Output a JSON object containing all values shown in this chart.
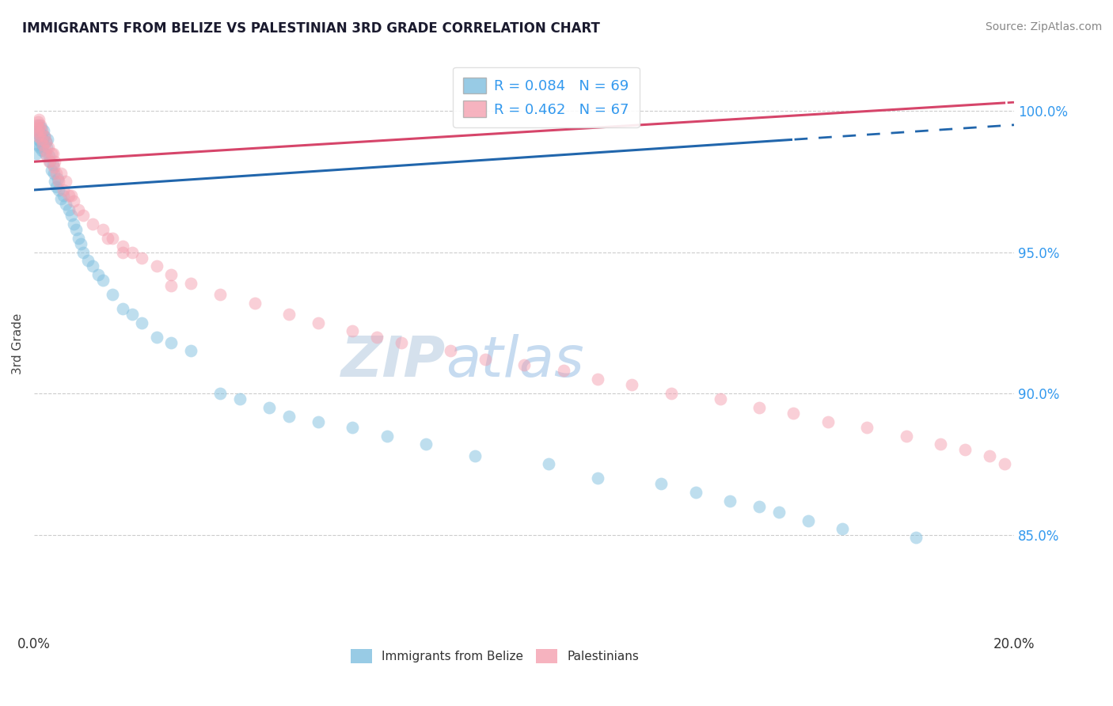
{
  "title": "IMMIGRANTS FROM BELIZE VS PALESTINIAN 3RD GRADE CORRELATION CHART",
  "source": "Source: ZipAtlas.com",
  "ylabel": "3rd Grade",
  "yticks": [
    85.0,
    90.0,
    95.0,
    100.0
  ],
  "ytick_labels": [
    "85.0%",
    "90.0%",
    "95.0%",
    "100.0%"
  ],
  "xlim": [
    0.0,
    20.0
  ],
  "ylim": [
    81.5,
    102.0
  ],
  "legend_r_belize": "R = 0.084",
  "legend_n_belize": "N = 69",
  "legend_r_palest": "R = 0.462",
  "legend_n_palest": "N = 67",
  "color_belize": "#7fbfdf",
  "color_palest": "#f4a0b0",
  "color_belize_line": "#2166ac",
  "color_palest_line": "#d6456a",
  "watermark_zip": "ZIP",
  "watermark_atlas": "atlas",
  "belize_x": [
    0.05,
    0.06,
    0.07,
    0.08,
    0.09,
    0.1,
    0.11,
    0.12,
    0.13,
    0.14,
    0.15,
    0.16,
    0.17,
    0.18,
    0.19,
    0.2,
    0.22,
    0.24,
    0.25,
    0.27,
    0.3,
    0.32,
    0.35,
    0.38,
    0.4,
    0.42,
    0.45,
    0.48,
    0.5,
    0.55,
    0.6,
    0.65,
    0.7,
    0.75,
    0.8,
    0.85,
    0.9,
    0.95,
    1.0,
    1.1,
    1.2,
    1.3,
    1.4,
    1.6,
    1.8,
    2.0,
    2.2,
    2.5,
    2.8,
    3.2,
    3.8,
    4.2,
    4.8,
    5.2,
    5.8,
    6.5,
    7.2,
    8.0,
    9.0,
    10.5,
    11.5,
    12.8,
    13.5,
    14.2,
    14.8,
    15.2,
    15.8,
    16.5,
    18.0
  ],
  "belize_y": [
    98.5,
    99.2,
    99.0,
    98.8,
    99.5,
    99.3,
    98.7,
    99.1,
    98.9,
    99.4,
    99.2,
    98.6,
    99.0,
    98.8,
    99.3,
    99.1,
    98.5,
    98.9,
    98.7,
    99.0,
    98.4,
    98.2,
    97.9,
    98.1,
    97.8,
    97.5,
    97.3,
    97.6,
    97.2,
    96.9,
    97.0,
    96.7,
    96.5,
    96.3,
    96.0,
    95.8,
    95.5,
    95.3,
    95.0,
    94.7,
    94.5,
    94.2,
    94.0,
    93.5,
    93.0,
    92.8,
    92.5,
    92.0,
    91.8,
    91.5,
    90.0,
    89.8,
    89.5,
    89.2,
    89.0,
    88.8,
    88.5,
    88.2,
    87.8,
    87.5,
    87.0,
    86.8,
    86.5,
    86.2,
    86.0,
    85.8,
    85.5,
    85.2,
    84.9
  ],
  "palest_x": [
    0.05,
    0.06,
    0.07,
    0.08,
    0.09,
    0.1,
    0.11,
    0.12,
    0.14,
    0.16,
    0.18,
    0.2,
    0.22,
    0.24,
    0.26,
    0.28,
    0.3,
    0.35,
    0.4,
    0.45,
    0.5,
    0.6,
    0.7,
    0.8,
    0.9,
    1.0,
    1.2,
    1.4,
    1.6,
    1.8,
    2.0,
    2.2,
    2.5,
    2.8,
    3.2,
    3.8,
    4.5,
    5.2,
    5.8,
    6.5,
    7.0,
    7.5,
    8.5,
    9.2,
    10.0,
    10.8,
    11.5,
    12.2,
    13.0,
    14.0,
    14.8,
    15.5,
    16.2,
    17.0,
    17.8,
    18.5,
    19.0,
    19.5,
    19.8,
    1.5,
    0.65,
    0.75,
    0.55,
    0.42,
    0.38,
    1.8,
    2.8
  ],
  "palest_y": [
    99.5,
    99.3,
    99.6,
    99.1,
    99.4,
    99.7,
    99.2,
    99.5,
    99.0,
    99.3,
    98.8,
    99.1,
    98.6,
    98.9,
    98.4,
    98.7,
    98.2,
    98.5,
    98.0,
    97.8,
    97.5,
    97.2,
    97.0,
    96.8,
    96.5,
    96.3,
    96.0,
    95.8,
    95.5,
    95.2,
    95.0,
    94.8,
    94.5,
    94.2,
    93.9,
    93.5,
    93.2,
    92.8,
    92.5,
    92.2,
    92.0,
    91.8,
    91.5,
    91.2,
    91.0,
    90.8,
    90.5,
    90.3,
    90.0,
    89.8,
    89.5,
    89.3,
    89.0,
    88.8,
    88.5,
    88.2,
    88.0,
    87.8,
    87.5,
    95.5,
    97.5,
    97.0,
    97.8,
    98.2,
    98.5,
    95.0,
    93.8
  ]
}
